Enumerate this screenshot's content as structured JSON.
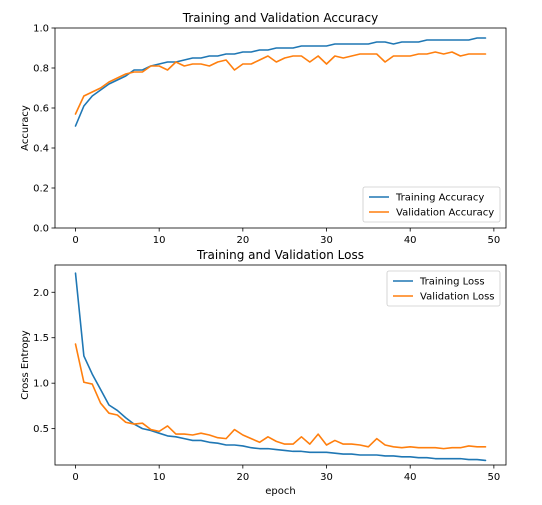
{
  "chart_data": [
    {
      "type": "line",
      "title": "Training and Validation Accuracy",
      "xlabel": "",
      "ylabel": "Accuracy",
      "xlim": [
        -2.45,
        51.45
      ],
      "ylim": [
        0.0,
        1.0
      ],
      "xticks": [
        0,
        10,
        20,
        30,
        40,
        50
      ],
      "yticks": [
        0.0,
        0.2,
        0.4,
        0.6,
        0.8,
        1.0
      ],
      "xtick_labels": [
        "0",
        "10",
        "20",
        "30",
        "40",
        "50"
      ],
      "ytick_labels": [
        "0.0",
        "0.2",
        "0.4",
        "0.6",
        "0.8",
        "1.0"
      ],
      "legend_position": "lower-right",
      "grid": false,
      "x": [
        0,
        1,
        2,
        3,
        4,
        5,
        6,
        7,
        8,
        9,
        10,
        11,
        12,
        13,
        14,
        15,
        16,
        17,
        18,
        19,
        20,
        21,
        22,
        23,
        24,
        25,
        26,
        27,
        28,
        29,
        30,
        31,
        32,
        33,
        34,
        35,
        36,
        37,
        38,
        39,
        40,
        41,
        42,
        43,
        44,
        45,
        46,
        47,
        48,
        49
      ],
      "series": [
        {
          "name": "Training Accuracy",
          "color": "#1f77b4",
          "values": [
            0.51,
            0.61,
            0.66,
            0.69,
            0.72,
            0.74,
            0.76,
            0.79,
            0.79,
            0.81,
            0.82,
            0.83,
            0.83,
            0.84,
            0.85,
            0.85,
            0.86,
            0.86,
            0.87,
            0.87,
            0.88,
            0.88,
            0.89,
            0.89,
            0.9,
            0.9,
            0.9,
            0.91,
            0.91,
            0.91,
            0.91,
            0.92,
            0.92,
            0.92,
            0.92,
            0.92,
            0.93,
            0.93,
            0.92,
            0.93,
            0.93,
            0.93,
            0.94,
            0.94,
            0.94,
            0.94,
            0.94,
            0.94,
            0.95,
            0.95
          ]
        },
        {
          "name": "Validation Accuracy",
          "color": "#ff7f0e",
          "values": [
            0.57,
            0.66,
            0.68,
            0.7,
            0.73,
            0.75,
            0.77,
            0.78,
            0.78,
            0.81,
            0.81,
            0.79,
            0.83,
            0.81,
            0.82,
            0.82,
            0.81,
            0.83,
            0.84,
            0.79,
            0.82,
            0.82,
            0.84,
            0.86,
            0.83,
            0.85,
            0.86,
            0.86,
            0.83,
            0.86,
            0.82,
            0.86,
            0.85,
            0.86,
            0.87,
            0.87,
            0.87,
            0.83,
            0.86,
            0.86,
            0.86,
            0.87,
            0.87,
            0.88,
            0.87,
            0.88,
            0.86,
            0.87,
            0.87,
            0.87
          ]
        }
      ]
    },
    {
      "type": "line",
      "title": "Training and Validation Loss",
      "xlabel": "epoch",
      "ylabel": "Cross Entropy",
      "xlim": [
        -2.45,
        51.45
      ],
      "ylim": [
        0.1,
        2.3
      ],
      "xticks": [
        0,
        10,
        20,
        30,
        40,
        50
      ],
      "yticks": [
        0.5,
        1.0,
        1.5,
        2.0
      ],
      "xtick_labels": [
        "0",
        "10",
        "20",
        "30",
        "40",
        "50"
      ],
      "ytick_labels": [
        "0.5",
        "1.0",
        "1.5",
        "2.0"
      ],
      "legend_position": "upper-right",
      "grid": false,
      "x": [
        0,
        1,
        2,
        3,
        4,
        5,
        6,
        7,
        8,
        9,
        10,
        11,
        12,
        13,
        14,
        15,
        16,
        17,
        18,
        19,
        20,
        21,
        22,
        23,
        24,
        25,
        26,
        27,
        28,
        29,
        30,
        31,
        32,
        33,
        34,
        35,
        36,
        37,
        38,
        39,
        40,
        41,
        42,
        43,
        44,
        45,
        46,
        47,
        48,
        49
      ],
      "series": [
        {
          "name": "Training Loss",
          "color": "#1f77b4",
          "values": [
            2.21,
            1.3,
            1.1,
            0.93,
            0.76,
            0.7,
            0.62,
            0.55,
            0.5,
            0.48,
            0.45,
            0.42,
            0.41,
            0.39,
            0.37,
            0.37,
            0.35,
            0.34,
            0.32,
            0.32,
            0.31,
            0.29,
            0.28,
            0.28,
            0.27,
            0.26,
            0.25,
            0.25,
            0.24,
            0.24,
            0.24,
            0.23,
            0.22,
            0.22,
            0.21,
            0.21,
            0.21,
            0.2,
            0.2,
            0.19,
            0.19,
            0.18,
            0.18,
            0.17,
            0.17,
            0.17,
            0.17,
            0.16,
            0.16,
            0.15
          ]
        },
        {
          "name": "Validation Loss",
          "color": "#ff7f0e",
          "values": [
            1.43,
            1.01,
            0.99,
            0.78,
            0.67,
            0.65,
            0.57,
            0.55,
            0.56,
            0.49,
            0.47,
            0.53,
            0.44,
            0.44,
            0.43,
            0.45,
            0.43,
            0.4,
            0.39,
            0.49,
            0.43,
            0.39,
            0.35,
            0.41,
            0.36,
            0.33,
            0.33,
            0.41,
            0.33,
            0.44,
            0.32,
            0.37,
            0.33,
            0.33,
            0.32,
            0.3,
            0.39,
            0.32,
            0.3,
            0.29,
            0.3,
            0.29,
            0.29,
            0.29,
            0.28,
            0.29,
            0.29,
            0.31,
            0.3,
            0.3
          ]
        }
      ]
    }
  ]
}
